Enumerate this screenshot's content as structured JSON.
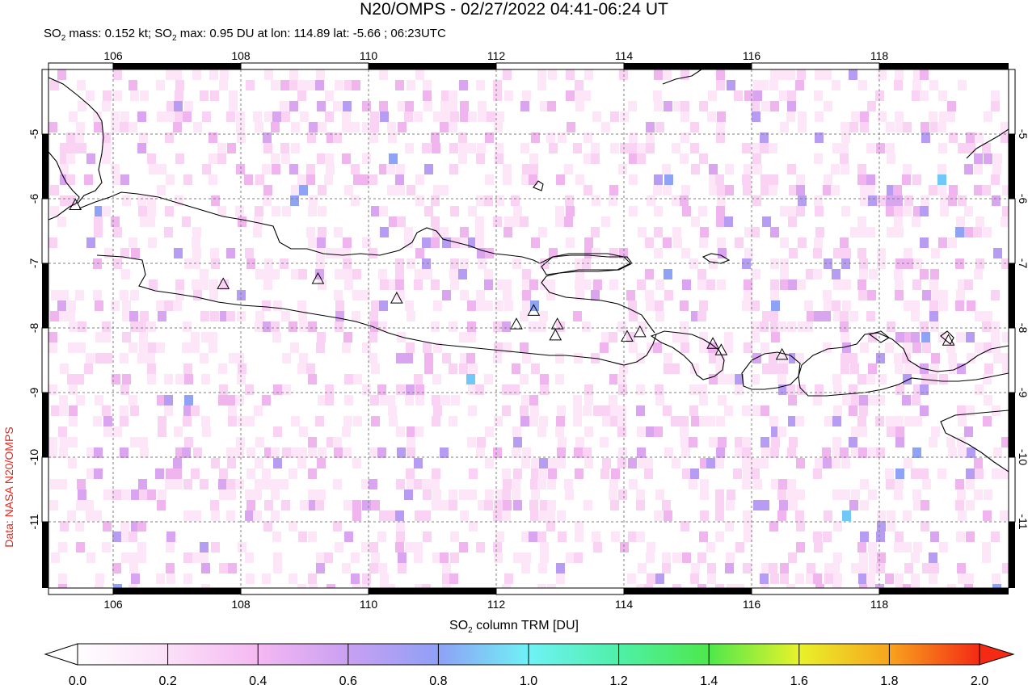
{
  "title": "N20/OMPS - 02/27/2022 04:41-06:24 UT",
  "subtitle": {
    "mass_prefix": "SO",
    "mass_sub": "2",
    "mass_text": " mass: 0.152 kt; ",
    "max_prefix": "SO",
    "max_sub": "2",
    "max_text": " max: 0.95 DU at lon: 114.89 lat: -5.66 ; 06:23UTC"
  },
  "credit": "Data: NASA N20/OMPS",
  "map": {
    "lon_range": [
      105.0,
      120.0
    ],
    "lat_range": [
      -12.0,
      -4.0
    ],
    "lon_ticks": [
      "106",
      "108",
      "110",
      "112",
      "114",
      "116",
      "118"
    ],
    "lon_tick_values": [
      106,
      108,
      110,
      112,
      114,
      116,
      118
    ],
    "lat_ticks": [
      "-5",
      "-6",
      "-7",
      "-8",
      "-9",
      "-10",
      "-11"
    ],
    "lat_tick_values": [
      -5,
      -6,
      -7,
      -8,
      -9,
      -10,
      -11
    ],
    "volcanoes": [
      [
        105.42,
        -6.1
      ],
      [
        107.73,
        -7.32
      ],
      [
        109.21,
        -7.24
      ],
      [
        110.44,
        -7.54
      ],
      [
        112.31,
        -7.94
      ],
      [
        112.58,
        -7.73
      ],
      [
        112.95,
        -7.94
      ],
      [
        112.92,
        -8.11
      ],
      [
        114.04,
        -8.13
      ],
      [
        114.24,
        -8.06
      ],
      [
        115.38,
        -8.24
      ],
      [
        115.51,
        -8.34
      ],
      [
        116.46,
        -8.41
      ],
      [
        119.06,
        -8.19
      ]
    ],
    "pixel_colors": [
      "#fde6f8",
      "#f9d2f4",
      "#f0b4ef",
      "#d9a4f0",
      "#b69cf2",
      "#8fa3f6",
      "#6fc8f6",
      "#75eaf6"
    ]
  },
  "colorbar": {
    "label_prefix": "SO",
    "label_sub": "2",
    "label_text": " column TRM [DU]",
    "ticks": [
      "0.0",
      "0.2",
      "0.4",
      "0.6",
      "0.8",
      "1.0",
      "1.2",
      "1.4",
      "1.6",
      "1.8",
      "2.0"
    ],
    "range": [
      0.0,
      2.0
    ]
  }
}
